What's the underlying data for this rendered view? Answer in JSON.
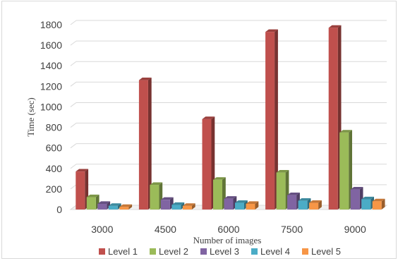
{
  "chart_data": {
    "type": "bar",
    "style": "3d-clustered-column",
    "title": "",
    "xlabel": "Number of images",
    "ylabel": "Time (sec)",
    "categories": [
      "3000",
      "4500",
      "6000",
      "7500",
      "9000"
    ],
    "ylim": [
      0,
      1800
    ],
    "yticks": [
      0,
      200,
      400,
      600,
      800,
      1000,
      1200,
      1400,
      1600,
      1800
    ],
    "grid": true,
    "legend_position": "bottom",
    "series": [
      {
        "name": "Level 1",
        "color": "#c0504d",
        "values": [
          370,
          1260,
          880,
          1730,
          1770
        ]
      },
      {
        "name": "Level 2",
        "color": "#9bbb59",
        "values": [
          120,
          240,
          290,
          360,
          750
        ]
      },
      {
        "name": "Level 3",
        "color": "#8064a2",
        "values": [
          55,
          95,
          105,
          140,
          195
        ]
      },
      {
        "name": "Level 4",
        "color": "#4bacc6",
        "values": [
          35,
          45,
          65,
          85,
          100
        ]
      },
      {
        "name": "Level 5",
        "color": "#f79646",
        "values": [
          25,
          35,
          55,
          65,
          80
        ]
      }
    ]
  }
}
